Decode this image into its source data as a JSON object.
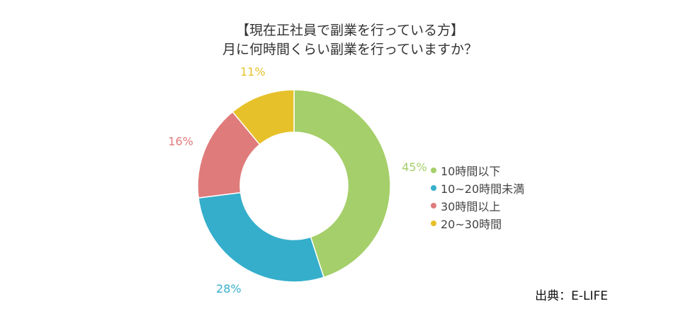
{
  "title_line1": "【現在正社員で副業を行っている方】",
  "title_line2": "月に何時間くらい副業を行っていますか？",
  "source": "出典：E-LIFE",
  "chart_data": {
    "type": "pie",
    "donut": true,
    "categories": [
      "10時間以下",
      "10~20時間未満",
      "30時間以上",
      "20~30時間"
    ],
    "values": [
      45,
      28,
      16,
      11
    ],
    "labels": [
      "45%",
      "28%",
      "16%",
      "11%"
    ],
    "colors": [
      "#a5cf6a",
      "#35aecb",
      "#e07b7b",
      "#e6c12a"
    ],
    "legend_position": "right"
  }
}
